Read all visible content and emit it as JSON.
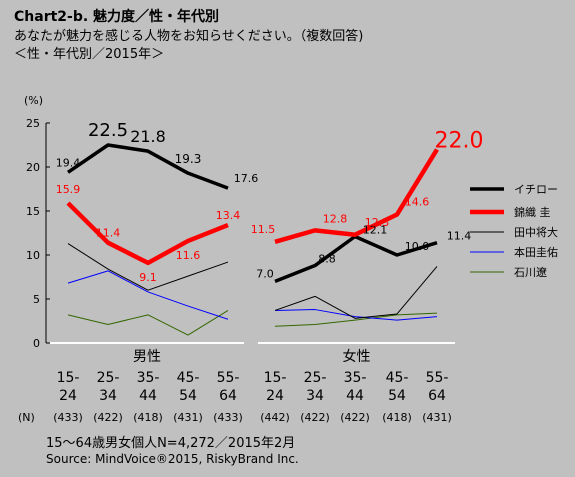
{
  "header": {
    "title": "Chart2-b. 魅力度／性・年代別",
    "subtitle": "あなたが魅力を感じる人物をお知らせください。（複数回答)",
    "subtitle2": "＜性・年代別／2015年＞"
  },
  "footer": {
    "note": "15～64歳男女個人N=4,272／2015年2月",
    "source": "Source: MindVoice®2015, RiskyBrand Inc."
  },
  "chart_data": {
    "type": "line",
    "yunit": "(%)",
    "ylim": [
      0,
      25
    ],
    "yticks": [
      0,
      5,
      10,
      15,
      20,
      25
    ],
    "grid": false,
    "legend_position": "right",
    "groups": [
      {
        "label": "男性",
        "categories": [
          "15-24",
          "25-34",
          "35-44",
          "45-54",
          "55-64"
        ],
        "n": [
          "(433)",
          "(422)",
          "(418)",
          "(431)",
          "(433)"
        ]
      },
      {
        "label": "女性",
        "categories": [
          "15-24",
          "25-34",
          "35-44",
          "45-54",
          "55-64"
        ],
        "n": [
          "(442)",
          "(422)",
          "(422)",
          "(418)",
          "(431)"
        ]
      }
    ],
    "n_label": "(N)",
    "series": [
      {
        "name": "イチロー",
        "color": "#000000",
        "width": 3.5,
        "male": [
          19.4,
          22.5,
          21.8,
          19.3,
          17.6
        ],
        "female": [
          7.0,
          8.8,
          12.1,
          10.0,
          11.4
        ],
        "male_labels": [
          "19.4",
          "22.5",
          "21.8",
          "19.3",
          "17.6"
        ],
        "female_labels": [
          "7.0",
          "8.8",
          "12.1",
          "10.0",
          "11.4"
        ]
      },
      {
        "name": "錦織 圭",
        "color": "#ff0000",
        "width": 4.5,
        "male": [
          15.9,
          11.4,
          9.1,
          11.6,
          13.4
        ],
        "female": [
          11.5,
          12.8,
          12.3,
          14.6,
          22.0
        ],
        "male_labels": [
          "15.9",
          "11.4",
          "9.1",
          "11.6",
          "13.4"
        ],
        "female_labels": [
          "11.5",
          "12.8",
          "12.3",
          "14.6",
          "22.0"
        ]
      },
      {
        "name": "田中将大",
        "color": "#000000",
        "width": 1,
        "male": [
          11.3,
          8.4,
          6.0,
          7.6,
          9.2
        ],
        "female": [
          3.7,
          5.3,
          2.8,
          3.3,
          8.7
        ]
      },
      {
        "name": "本田圭佑",
        "color": "#0000ff",
        "width": 1,
        "male": [
          6.8,
          8.2,
          5.8,
          4.2,
          2.7
        ],
        "female": [
          3.7,
          3.8,
          3.0,
          2.6,
          3.0
        ]
      },
      {
        "name": "石川遼",
        "color": "#336600",
        "width": 1,
        "male": [
          3.2,
          2.1,
          3.2,
          0.9,
          3.7
        ],
        "female": [
          1.9,
          2.1,
          2.6,
          3.2,
          3.4
        ]
      }
    ]
  }
}
